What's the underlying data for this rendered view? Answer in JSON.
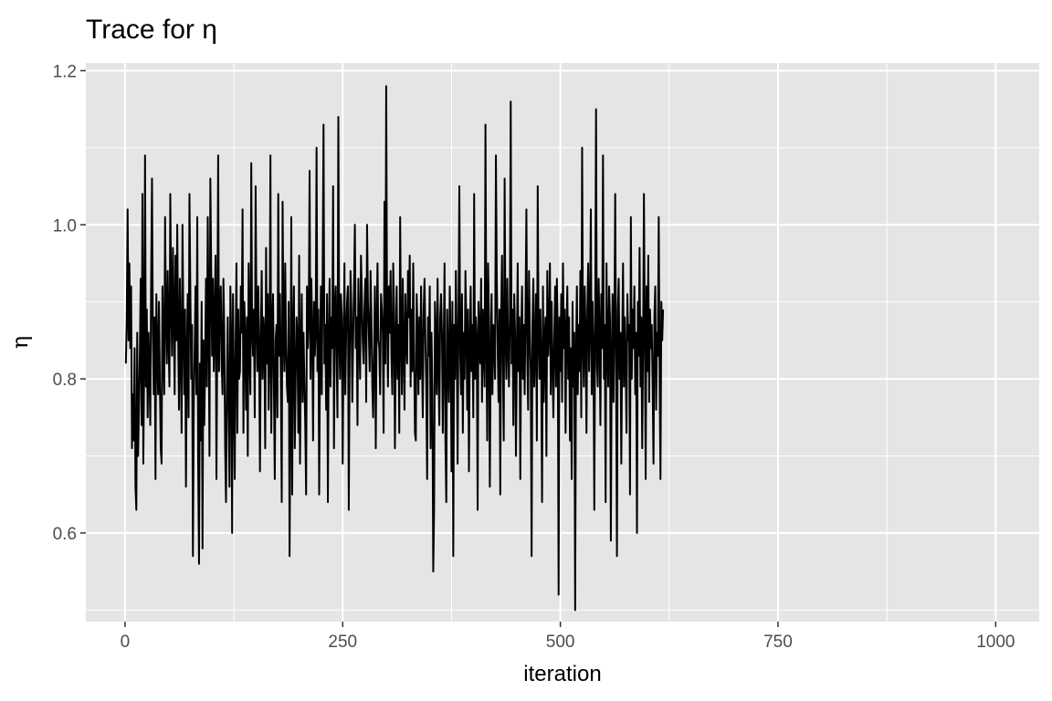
{
  "chart_data": {
    "type": "line",
    "title": "Trace for η",
    "xlabel": "iteration",
    "ylabel": "η",
    "xlim": [
      -45,
      1050
    ],
    "ylim": [
      0.485,
      1.21
    ],
    "xticks": [
      0,
      250,
      500,
      750,
      1000
    ],
    "yticks": [
      0.6,
      0.8,
      1.0,
      1.2
    ],
    "xtick_labels": [
      "0",
      "250",
      "500",
      "750",
      "1000"
    ],
    "ytick_labels": [
      "0.6",
      "0.8",
      "1.0",
      "1.2"
    ],
    "grid": true,
    "legend": "none",
    "colors": {
      "panel": "#e5e5e5",
      "grid": "#ffffff",
      "line": "#000000",
      "tick_text": "#4d4d4d",
      "tick_mark": "#333333"
    },
    "series": [
      {
        "name": "",
        "x_start": 1,
        "x_step": 1,
        "values": [
          0.82,
          0.88,
          1.02,
          0.85,
          0.95,
          0.84,
          0.92,
          0.71,
          0.78,
          0.72,
          0.84,
          0.66,
          0.63,
          0.86,
          0.7,
          0.76,
          0.83,
          0.93,
          0.74,
          1.04,
          0.69,
          0.82,
          1.09,
          0.79,
          0.89,
          0.75,
          0.86,
          0.81,
          0.74,
          0.93,
          1.06,
          0.86,
          0.78,
          0.88,
          0.67,
          0.91,
          0.84,
          0.78,
          0.9,
          0.8,
          0.71,
          0.69,
          0.92,
          0.84,
          0.78,
          1.01,
          0.88,
          0.82,
          0.94,
          0.85,
          0.79,
          1.04,
          0.9,
          0.83,
          0.97,
          0.89,
          0.78,
          0.96,
          0.85,
          1.0,
          0.86,
          0.76,
          0.93,
          0.84,
          0.73,
          1.0,
          0.87,
          0.78,
          0.89,
          0.66,
          0.83,
          0.91,
          0.75,
          1.04,
          0.92,
          0.8,
          0.87,
          0.57,
          0.77,
          0.84,
          0.92,
          0.78,
          1.01,
          0.69,
          0.56,
          0.82,
          0.72,
          0.9,
          0.58,
          0.85,
          0.74,
          0.82,
          0.93,
          0.79,
          1.01,
          0.88,
          0.7,
          1.06,
          0.94,
          0.83,
          0.93,
          0.81,
          0.88,
          0.96,
          0.67,
          0.86,
          1.09,
          0.81,
          0.9,
          0.92,
          0.82,
          0.78,
          0.93,
          0.86,
          0.71,
          0.64,
          0.79,
          0.88,
          0.76,
          0.66,
          0.92,
          0.85,
          0.6,
          0.91,
          0.8,
          0.67,
          0.84,
          0.95,
          0.73,
          0.89,
          0.8,
          0.81,
          0.92,
          0.86,
          1.02,
          0.73,
          0.9,
          0.85,
          0.76,
          0.88,
          0.7,
          0.95,
          0.84,
          0.78,
          1.08,
          0.86,
          0.83,
          0.89,
          0.75,
          1.05,
          0.88,
          0.81,
          0.92,
          0.84,
          0.68,
          0.86,
          0.94,
          0.8,
          0.88,
          0.86,
          0.71,
          0.97,
          0.82,
          0.91,
          0.76,
          0.83,
          1.09,
          0.73,
          0.86,
          0.91,
          0.79,
          0.67,
          0.85,
          0.87,
          0.75,
          1.04,
          0.83,
          0.91,
          0.8,
          0.64,
          1.03,
          0.87,
          0.81,
          0.95,
          0.84,
          0.79,
          0.77,
          0.9,
          0.57,
          0.76,
          1.01,
          0.65,
          0.86,
          0.92,
          0.71,
          0.8,
          0.88,
          0.85,
          0.73,
          0.96,
          0.69,
          0.83,
          0.91,
          0.77,
          0.86,
          0.8,
          0.74,
          0.65,
          0.92,
          0.84,
          0.88,
          1.07,
          0.8,
          0.93,
          0.86,
          0.72,
          0.9,
          0.83,
          0.86,
          1.1,
          0.81,
          0.89,
          0.65,
          0.84,
          0.92,
          0.78,
          0.94,
          1.13,
          0.82,
          0.87,
          0.76,
          0.91,
          0.64,
          0.85,
          0.93,
          0.79,
          0.88,
          0.84,
          1.05,
          0.71,
          0.89,
          0.92,
          0.83,
          0.75,
          1.14,
          0.85,
          0.8,
          0.91,
          0.88,
          0.69,
          0.84,
          0.95,
          0.78,
          0.86,
          0.9,
          0.92,
          0.63,
          0.83,
          0.94,
          0.89,
          0.77,
          0.85,
          0.92,
          1.0,
          0.84,
          0.88,
          0.74,
          0.93,
          0.86,
          0.8,
          0.96,
          0.91,
          0.85,
          0.82,
          0.89,
          0.93,
          0.77,
          1.0,
          0.9,
          0.86,
          0.81,
          0.94,
          0.88,
          0.79,
          0.75,
          0.83,
          0.92,
          0.71,
          0.87,
          0.95,
          0.85,
          0.84,
          0.78,
          0.91,
          0.89,
          0.86,
          0.73,
          1.03,
          0.82,
          1.18,
          0.88,
          0.79,
          0.92,
          0.86,
          0.94,
          0.83,
          0.78,
          0.95,
          0.89,
          0.71,
          0.85,
          0.92,
          0.8,
          0.87,
          0.73,
          1.01,
          0.86,
          0.78,
          0.93,
          0.84,
          0.76,
          0.91,
          0.85,
          0.82,
          0.94,
          0.88,
          0.96,
          0.79,
          0.89,
          0.81,
          0.95,
          0.84,
          0.73,
          0.72,
          0.91,
          0.86,
          0.78,
          0.88,
          0.8,
          0.92,
          0.83,
          0.75,
          0.89,
          0.93,
          0.85,
          0.79,
          0.67,
          0.88,
          0.83,
          0.92,
          0.71,
          0.86,
          0.79,
          0.55,
          0.63,
          0.9,
          0.85,
          0.78,
          0.93,
          0.82,
          0.74,
          0.88,
          0.91,
          0.86,
          0.73,
          0.84,
          0.95,
          0.72,
          0.64,
          0.89,
          0.83,
          0.77,
          0.92,
          0.85,
          0.68,
          0.9,
          0.57,
          0.87,
          0.8,
          0.94,
          0.85,
          0.69,
          0.88,
          1.05,
          0.83,
          0.78,
          0.91,
          0.73,
          0.86,
          0.8,
          0.94,
          0.87,
          0.76,
          0.89,
          0.68,
          0.84,
          0.92,
          0.81,
          0.87,
          0.75,
          1.04,
          0.8,
          0.88,
          0.85,
          0.63,
          0.9,
          0.86,
          0.82,
          0.93,
          0.77,
          0.89,
          0.84,
          0.79,
          1.13,
          0.86,
          0.72,
          0.95,
          0.88,
          0.66,
          0.83,
          0.91,
          0.78,
          0.87,
          0.85,
          0.8,
          1.09,
          0.93,
          0.84,
          0.77,
          0.89,
          0.65,
          0.88,
          0.96,
          0.82,
          0.72,
          1.06,
          0.86,
          0.8,
          0.93,
          0.84,
          0.79,
          0.88,
          1.16,
          0.82,
          0.89,
          0.74,
          0.91,
          0.86,
          0.7,
          0.83,
          0.95,
          0.81,
          0.88,
          0.67,
          0.85,
          0.92,
          0.8,
          0.87,
          0.78,
          0.89,
          1.02,
          0.83,
          0.76,
          0.94,
          0.86,
          0.81,
          0.57,
          0.87,
          0.93,
          0.79,
          0.84,
          0.91,
          0.72,
          1.05,
          0.86,
          0.8,
          0.89,
          0.82,
          0.64,
          0.92,
          0.77,
          0.85,
          0.88,
          0.7,
          0.94,
          0.83,
          0.86,
          0.95,
          0.78,
          0.9,
          0.82,
          0.75,
          0.85,
          0.92,
          0.79,
          0.93,
          0.86,
          0.52,
          0.88,
          0.81,
          0.91,
          0.77,
          0.95,
          0.84,
          0.89,
          0.73,
          0.86,
          0.92,
          0.8,
          0.88,
          0.72,
          0.84,
          0.67,
          0.9,
          0.79,
          0.86,
          0.5,
          0.83,
          0.92,
          0.78,
          0.87,
          0.81,
          0.94,
          0.75,
          1.1,
          0.85,
          0.79,
          0.92,
          0.86,
          0.73,
          0.89,
          0.95,
          0.81,
          0.87,
          1.02,
          0.78,
          0.9,
          0.84,
          0.63,
          0.88,
          1.15,
          0.82,
          0.79,
          0.93,
          0.86,
          0.74,
          0.91,
          0.84,
          1.09,
          0.8,
          0.87,
          0.64,
          0.95,
          0.85,
          0.79,
          0.92,
          0.88,
          0.59,
          0.83,
          0.91,
          0.77,
          0.86,
          1.04,
          0.82,
          0.57,
          0.89,
          0.93,
          0.8,
          0.86,
          0.69,
          0.84,
          0.95,
          0.79,
          0.88,
          0.82,
          0.73,
          0.91,
          0.85,
          0.87,
          0.65,
          1.01,
          0.8,
          0.89,
          0.84,
          0.92,
          0.78,
          0.86,
          0.6,
          0.9,
          0.83,
          0.97,
          0.79,
          0.88,
          0.71,
          0.84,
          1.04,
          0.86,
          0.67,
          0.92,
          0.81,
          0.96,
          0.77,
          0.89,
          0.84,
          0.87,
          0.79,
          0.69,
          0.88,
          0.92,
          0.76,
          0.86,
          0.83,
          1.01,
          0.8,
          0.67,
          0.9,
          0.85,
          0.89
        ]
      }
    ]
  }
}
